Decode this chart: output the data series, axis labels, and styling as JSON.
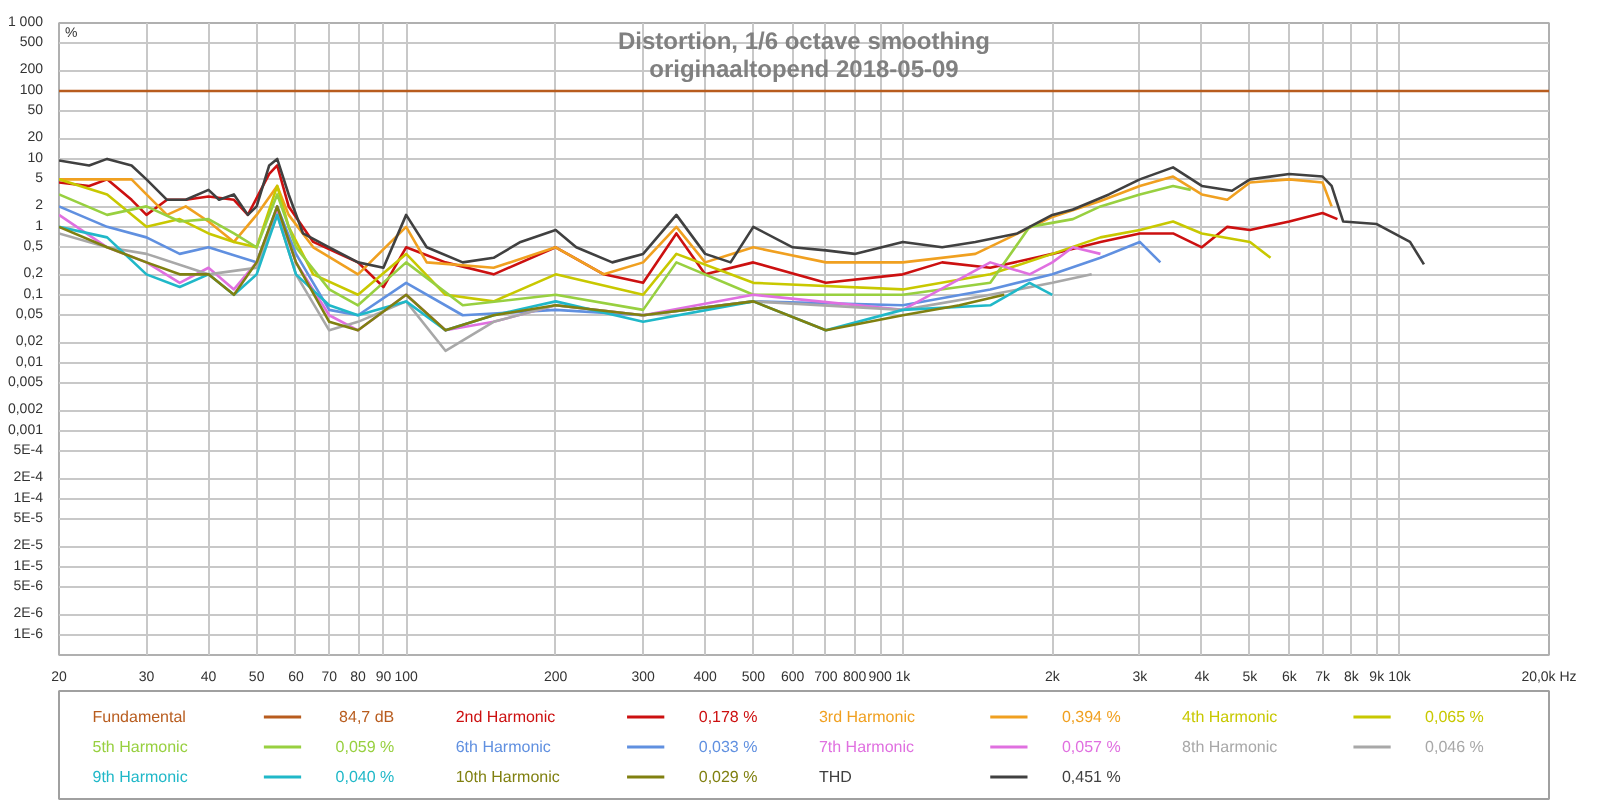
{
  "chart_data": {
    "type": "line",
    "title": "Distortion, 1/6 octave smoothing",
    "subtitle": "originaaltopend 2018-05-09",
    "ylabel": "%",
    "log": "xy",
    "grid": true,
    "legend": "bottom",
    "xlim": [
      20,
      20000
    ],
    "ylim": [
      5e-07,
      1000
    ],
    "xticks": [
      20,
      30,
      40,
      50,
      60,
      70,
      80,
      90,
      100,
      200,
      300,
      400,
      500,
      600,
      700,
      800,
      900,
      {
        "value": 1000,
        "label": "1k"
      },
      {
        "value": 2000,
        "label": "2k"
      },
      {
        "value": 3000,
        "label": "3k"
      },
      {
        "value": 4000,
        "label": "4k"
      },
      {
        "value": 5000,
        "label": "5k"
      },
      {
        "value": 6000,
        "label": "6k"
      },
      {
        "value": 7000,
        "label": "7k"
      },
      {
        "value": 8000,
        "label": "8k"
      },
      {
        "value": 9000,
        "label": "9k"
      },
      {
        "value": 10000,
        "label": "10k"
      },
      {
        "value": 20000,
        "label": "20,0k Hz"
      }
    ],
    "yticks": [
      {
        "value": 1000,
        "label": "1 000"
      },
      500,
      200,
      100,
      50,
      20,
      10,
      5,
      2,
      1,
      {
        "value": 0.5,
        "label": "0,5"
      },
      {
        "value": 0.2,
        "label": "0,2"
      },
      {
        "value": 0.1,
        "label": "0,1"
      },
      {
        "value": 0.05,
        "label": "0,05"
      },
      {
        "value": 0.02,
        "label": "0,02"
      },
      {
        "value": 0.01,
        "label": "0,01"
      },
      {
        "value": 0.005,
        "label": "0,005"
      },
      {
        "value": 0.002,
        "label": "0,002"
      },
      {
        "value": 0.001,
        "label": "0,001"
      },
      {
        "value": 0.0005,
        "label": "5E-4"
      },
      {
        "value": 0.0002,
        "label": "2E-4"
      },
      {
        "value": 0.0001,
        "label": "1E-4"
      },
      {
        "value": 5e-05,
        "label": "5E-5"
      },
      {
        "value": 2e-05,
        "label": "2E-5"
      },
      {
        "value": 1e-05,
        "label": "1E-5"
      },
      {
        "value": 5e-06,
        "label": "5E-6"
      },
      {
        "value": 2e-06,
        "label": "2E-6"
      },
      {
        "value": 1e-06,
        "label": "1E-6"
      }
    ],
    "annotations": [
      "84,7 dB",
      "0,178 %",
      "0,394 %",
      "0,065 %",
      "0,059 %",
      "0,033 %",
      "0,057 %",
      "0,046 %",
      "0,040 %",
      "0,029 %",
      "0,451 %"
    ],
    "series": [
      {
        "name": "Fundamental",
        "color": "#b85c1e",
        "x": [
          20,
          20000
        ],
        "values": [
          100,
          100
        ]
      },
      {
        "name": "2nd Harmonic",
        "color": "#cc1010",
        "x": [
          20,
          23,
          25,
          28,
          30,
          33,
          36,
          40,
          45,
          48,
          53,
          55,
          58,
          65,
          80,
          90,
          100,
          120,
          150,
          200,
          250,
          300,
          350,
          400,
          500,
          700,
          1000,
          1200,
          1500,
          2000,
          2500,
          3000,
          3500,
          4000,
          4500,
          5000,
          6000,
          7000,
          7500
        ],
        "values": [
          4.5,
          4,
          5,
          2.5,
          1.5,
          2.5,
          2.5,
          2.8,
          2.5,
          1.5,
          6,
          8,
          2,
          0.6,
          0.3,
          0.13,
          0.5,
          0.3,
          0.2,
          0.5,
          0.2,
          0.15,
          0.8,
          0.2,
          0.3,
          0.15,
          0.2,
          0.3,
          0.25,
          0.4,
          0.6,
          0.8,
          0.8,
          0.5,
          1,
          0.9,
          1.2,
          1.6,
          1.3
        ]
      },
      {
        "name": "3rd Harmonic",
        "color": "#f0a020",
        "x": [
          20,
          25,
          28,
          30,
          33,
          36,
          40,
          45,
          50,
          55,
          58,
          65,
          80,
          100,
          110,
          150,
          200,
          250,
          300,
          350,
          400,
          500,
          700,
          1000,
          1400,
          2000,
          2500,
          3000,
          3500,
          4000,
          4500,
          5000,
          6000,
          7000,
          7300
        ],
        "values": [
          5,
          5,
          5,
          3,
          1.5,
          2,
          1.2,
          0.6,
          1.5,
          4,
          1.5,
          0.5,
          0.2,
          1,
          0.3,
          0.25,
          0.5,
          0.2,
          0.3,
          1,
          0.3,
          0.5,
          0.3,
          0.3,
          0.4,
          1.4,
          2.4,
          4,
          5.5,
          3,
          2.5,
          4.5,
          5,
          4.5,
          2
        ]
      },
      {
        "name": "4th Harmonic",
        "color": "#c8c800",
        "x": [
          20,
          25,
          30,
          35,
          40,
          45,
          50,
          55,
          58,
          65,
          80,
          100,
          120,
          150,
          200,
          300,
          350,
          500,
          1000,
          1500,
          2000,
          2500,
          3000,
          3500,
          4000,
          5000,
          5500
        ],
        "values": [
          5,
          3,
          1,
          1.3,
          0.8,
          0.6,
          0.5,
          4,
          1,
          0.2,
          0.1,
          0.4,
          0.1,
          0.08,
          0.2,
          0.1,
          0.4,
          0.15,
          0.12,
          0.2,
          0.4,
          0.7,
          0.9,
          1.2,
          0.8,
          0.6,
          0.35
        ]
      },
      {
        "name": "5th Harmonic",
        "color": "#98d040",
        "x": [
          20,
          25,
          30,
          35,
          40,
          45,
          50,
          55,
          60,
          70,
          80,
          100,
          130,
          200,
          300,
          350,
          500,
          1000,
          1500,
          1800,
          2200,
          2500,
          3000,
          3500,
          3800
        ],
        "values": [
          3,
          1.5,
          2,
          1.2,
          1.3,
          0.8,
          0.5,
          3,
          0.5,
          0.12,
          0.07,
          0.3,
          0.07,
          0.1,
          0.06,
          0.3,
          0.1,
          0.1,
          0.15,
          1,
          1.3,
          2,
          3,
          4,
          3.5
        ]
      },
      {
        "name": "6th Harmonic",
        "color": "#6090e0",
        "x": [
          20,
          25,
          30,
          35,
          40,
          50,
          55,
          60,
          70,
          80,
          100,
          130,
          200,
          300,
          500,
          1000,
          1500,
          2000,
          2500,
          3000,
          3300
        ],
        "values": [
          2,
          1,
          0.7,
          0.4,
          0.5,
          0.3,
          2,
          0.4,
          0.06,
          0.05,
          0.15,
          0.05,
          0.06,
          0.05,
          0.08,
          0.07,
          0.12,
          0.2,
          0.35,
          0.6,
          0.3
        ]
      },
      {
        "name": "7th Harmonic",
        "color": "#e070e0",
        "x": [
          20,
          25,
          30,
          35,
          40,
          45,
          50,
          55,
          60,
          70,
          80,
          100,
          120,
          150,
          200,
          300,
          500,
          1000,
          1500,
          1800,
          2000,
          2200,
          2500
        ],
        "values": [
          1.5,
          0.5,
          0.3,
          0.15,
          0.25,
          0.12,
          0.3,
          1.8,
          0.3,
          0.05,
          0.03,
          0.1,
          0.03,
          0.04,
          0.07,
          0.05,
          0.1,
          0.06,
          0.3,
          0.2,
          0.3,
          0.5,
          0.4
        ]
      },
      {
        "name": "8th Harmonic",
        "color": "#a8a8a8",
        "x": [
          20,
          25,
          30,
          40,
          50,
          55,
          60,
          70,
          80,
          100,
          120,
          150,
          200,
          300,
          500,
          1000,
          1500,
          2000,
          2400
        ],
        "values": [
          0.8,
          0.5,
          0.4,
          0.2,
          0.25,
          1.5,
          0.2,
          0.03,
          0.04,
          0.08,
          0.015,
          0.04,
          0.07,
          0.05,
          0.08,
          0.06,
          0.1,
          0.15,
          0.2
        ]
      },
      {
        "name": "9th Harmonic",
        "color": "#20b8c8",
        "x": [
          20,
          25,
          30,
          35,
          40,
          45,
          50,
          55,
          60,
          70,
          80,
          100,
          120,
          150,
          200,
          300,
          500,
          700,
          1000,
          1500,
          1800,
          2000
        ],
        "values": [
          1,
          0.7,
          0.2,
          0.13,
          0.2,
          0.1,
          0.2,
          1.5,
          0.2,
          0.07,
          0.05,
          0.08,
          0.03,
          0.05,
          0.08,
          0.04,
          0.08,
          0.03,
          0.06,
          0.07,
          0.15,
          0.1
        ]
      },
      {
        "name": "10th Harmonic",
        "color": "#808010",
        "x": [
          20,
          25,
          30,
          35,
          40,
          45,
          50,
          55,
          60,
          70,
          80,
          100,
          120,
          150,
          200,
          300,
          500,
          700,
          1000,
          1300,
          1600
        ],
        "values": [
          1,
          0.5,
          0.3,
          0.2,
          0.2,
          0.1,
          0.3,
          2,
          0.3,
          0.04,
          0.03,
          0.1,
          0.03,
          0.05,
          0.07,
          0.05,
          0.08,
          0.03,
          0.05,
          0.07,
          0.1
        ]
      },
      {
        "name": "THD",
        "color": "#404040",
        "x": [
          20,
          23,
          25,
          28,
          30,
          33,
          36,
          40,
          42,
          45,
          48,
          50,
          53,
          55,
          58,
          62,
          70,
          80,
          90,
          100,
          110,
          130,
          150,
          170,
          200,
          220,
          260,
          300,
          350,
          400,
          450,
          500,
          600,
          700,
          800,
          1000,
          1200,
          1400,
          1700,
          2000,
          2200,
          2600,
          3000,
          3500,
          4000,
          4600,
          5000,
          6000,
          7000,
          7300,
          7700,
          9000,
          10500,
          11200
        ],
        "values": [
          9.5,
          8,
          10,
          8,
          5,
          2.5,
          2.5,
          3.5,
          2.5,
          3,
          1.5,
          2,
          8,
          10,
          3,
          0.8,
          0.5,
          0.3,
          0.25,
          1.5,
          0.5,
          0.3,
          0.35,
          0.6,
          0.9,
          0.5,
          0.3,
          0.4,
          1.5,
          0.4,
          0.3,
          1,
          0.5,
          0.45,
          0.4,
          0.6,
          0.5,
          0.6,
          0.8,
          1.5,
          1.8,
          3,
          5,
          7.5,
          4,
          3.4,
          5,
          6,
          5.5,
          4,
          1.2,
          1.1,
          0.6,
          0.28
        ]
      }
    ]
  }
}
